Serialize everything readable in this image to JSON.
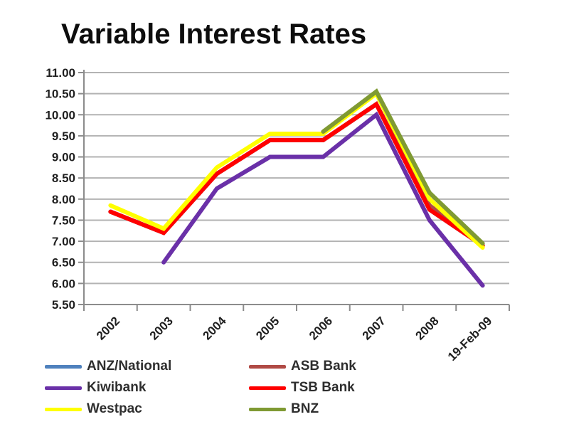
{
  "chart_data": {
    "type": "line",
    "title": "Variable Interest Rates",
    "categories": [
      "2002",
      "2003",
      "2004",
      "2005",
      "2006",
      "2007",
      "2008",
      "19-Feb-09"
    ],
    "series": [
      {
        "name": "ANZ/National",
        "color": "#4f81bd",
        "values": [
          7.7,
          7.2,
          8.6,
          9.4,
          9.4,
          10.25,
          7.75,
          6.9
        ]
      },
      {
        "name": "ASB Bank",
        "color": "#b04a45",
        "values": [
          7.7,
          7.2,
          8.6,
          9.4,
          9.4,
          10.25,
          7.85,
          6.9
        ]
      },
      {
        "name": "Kiwibank",
        "color": "#6a30a8",
        "values": [
          null,
          6.5,
          8.25,
          9.0,
          9.0,
          10.0,
          7.5,
          5.95
        ]
      },
      {
        "name": "TSB Bank",
        "color": "#ff0000",
        "values": [
          7.7,
          7.2,
          8.6,
          9.4,
          9.4,
          10.25,
          7.75,
          6.9
        ]
      },
      {
        "name": "Westpac",
        "color": "#ffff00",
        "values": [
          7.85,
          7.3,
          8.75,
          9.55,
          9.55,
          10.5,
          8.0,
          6.85
        ]
      },
      {
        "name": "BNZ",
        "color": "#7f9a33",
        "values": [
          null,
          null,
          null,
          null,
          9.6,
          10.55,
          8.15,
          6.95
        ]
      }
    ],
    "ylim": [
      5.5,
      11.0
    ],
    "ytick_step": 0.5,
    "ytick_labels": [
      "11.00",
      "10.50",
      "10.00",
      "9.50",
      "9.00",
      "8.50",
      "8.00",
      "7.50",
      "7.00",
      "6.50",
      "6.00",
      "5.50"
    ],
    "grid": true,
    "legend_position": "bottom",
    "legend_columns": [
      [
        "ANZ/National",
        "Kiwibank",
        "Westpac"
      ],
      [
        "ASB Bank",
        "TSB Bank",
        "BNZ"
      ]
    ]
  },
  "style_colors": {
    "gridline": "#b3b3b3",
    "axis": "#8c8c8c",
    "tick": "#8c8c8c",
    "title_text": "#0d0d0d",
    "label_text": "#1f1f1f",
    "legend_text": "#2e2e2e",
    "background": "#ffffff"
  }
}
